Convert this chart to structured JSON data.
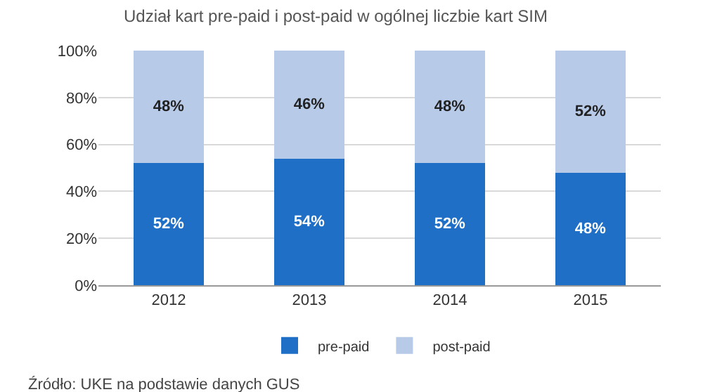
{
  "chart_data": {
    "type": "bar",
    "title": "Udział kart pre-paid i post-paid w ogólnej liczbie kart SIM",
    "categories": [
      "2012",
      "2013",
      "2014",
      "2015"
    ],
    "series": [
      {
        "name": "pre-paid",
        "color": "#1f6fc6",
        "values": [
          52,
          54,
          52,
          48
        ],
        "value_labels": [
          "52%",
          "54%",
          "52%",
          "48%"
        ]
      },
      {
        "name": "post-paid",
        "color": "#b7cae8",
        "values": [
          48,
          46,
          48,
          52
        ],
        "value_labels": [
          "48%",
          "46%",
          "48%",
          "52%"
        ]
      }
    ],
    "stacked": true,
    "ylim": [
      0,
      100
    ],
    "yticks": [
      {
        "value": 0,
        "label": "0%"
      },
      {
        "value": 20,
        "label": "20%"
      },
      {
        "value": 40,
        "label": "40%"
      },
      {
        "value": 60,
        "label": "60%"
      },
      {
        "value": 80,
        "label": "80%"
      },
      {
        "value": 100,
        "label": "100%"
      }
    ],
    "grid": "y",
    "legend": "bottom",
    "annotations": [
      "Źródło: UKE na podstawie danych GUS"
    ]
  }
}
